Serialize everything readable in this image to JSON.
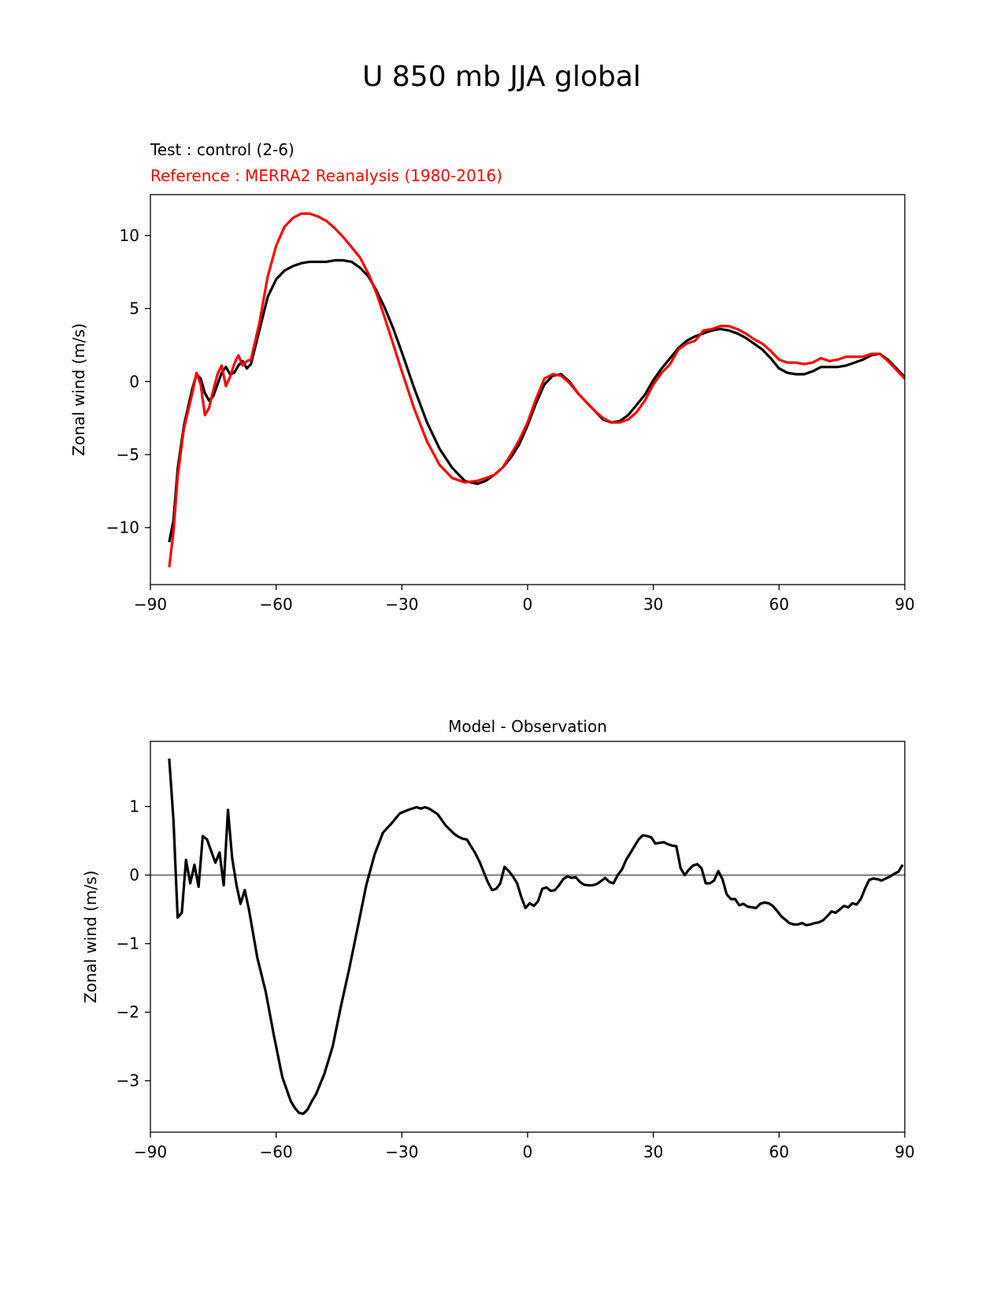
{
  "figure": {
    "title": "U 850 mb JJA global"
  },
  "chart_data": [
    {
      "type": "line",
      "title_left_test": "Test : control (2-6)",
      "title_left_ref": "Reference : MERRA2 Reanalysis (1980-2016)",
      "xlabel": "",
      "ylabel": "Zonal wind (m/s)",
      "xlim": [
        -90,
        90
      ],
      "ylim": [
        -13.9,
        12.8
      ],
      "xticks": [
        -90,
        -60,
        -30,
        0,
        30,
        60,
        90
      ],
      "xtick_labels": [
        "−90",
        "−60",
        "−30",
        "0",
        "30",
        "60",
        "90"
      ],
      "yticks": [
        -10,
        -5,
        0,
        5,
        10
      ],
      "ytick_labels": [
        "−10",
        "−5",
        "0",
        "5",
        "10"
      ],
      "series": [
        {
          "name": "Test : control (2-6)",
          "color": "#000000",
          "x": [
            -85.5,
            -84.5,
            -83.5,
            -82,
            -80,
            -79,
            -78,
            -77,
            -76,
            -75,
            -74,
            -73,
            -72,
            -71,
            -70,
            -69,
            -68,
            -67,
            -66,
            -64,
            -62,
            -60,
            -58,
            -56,
            -54,
            -52,
            -50,
            -48,
            -46,
            -44,
            -42,
            -40,
            -38,
            -36,
            -34,
            -32,
            -30,
            -27,
            -24,
            -21,
            -18,
            -15,
            -12,
            -10,
            -8,
            -6,
            -4,
            -2,
            0,
            2,
            4,
            6,
            8,
            10,
            12,
            14,
            16,
            18,
            20,
            22,
            24,
            26,
            28,
            30,
            32,
            34,
            36,
            38,
            40,
            42,
            44,
            46,
            48,
            50,
            52,
            54,
            56,
            58,
            60,
            62,
            64,
            66,
            68,
            70,
            72,
            74,
            76,
            78,
            80,
            82,
            84,
            86,
            88,
            90
          ],
          "y": [
            -11.0,
            -9.5,
            -6.0,
            -3.0,
            -0.5,
            0.5,
            0.2,
            -0.8,
            -1.3,
            -1.0,
            -0.2,
            0.6,
            1.0,
            0.5,
            0.6,
            1.1,
            1.4,
            0.9,
            1.2,
            3.5,
            5.8,
            7.0,
            7.6,
            7.9,
            8.1,
            8.2,
            8.2,
            8.2,
            8.3,
            8.3,
            8.2,
            7.8,
            7.2,
            6.2,
            5.0,
            3.6,
            2.0,
            -0.5,
            -2.8,
            -4.6,
            -5.9,
            -6.8,
            -7.0,
            -6.8,
            -6.4,
            -5.9,
            -5.2,
            -4.3,
            -3.0,
            -1.5,
            -0.2,
            0.4,
            0.5,
            0.0,
            -0.8,
            -1.4,
            -2.0,
            -2.6,
            -2.8,
            -2.7,
            -2.3,
            -1.6,
            -0.9,
            0.1,
            0.9,
            1.6,
            2.3,
            2.8,
            3.1,
            3.3,
            3.5,
            3.6,
            3.5,
            3.3,
            3.0,
            2.6,
            2.2,
            1.6,
            0.9,
            0.6,
            0.5,
            0.5,
            0.7,
            1.0,
            1.0,
            1.0,
            1.1,
            1.3,
            1.5,
            1.8,
            1.9,
            1.5,
            0.9,
            0.3
          ]
        },
        {
          "name": "Reference : MERRA2 Reanalysis (1980-2016)",
          "color": "#ff0000",
          "x": [
            -85.5,
            -84.5,
            -83.5,
            -82,
            -80,
            -79,
            -78,
            -77,
            -76,
            -75,
            -74,
            -73,
            -72,
            -71,
            -70,
            -69,
            -68,
            -67,
            -66,
            -64,
            -62,
            -60,
            -58,
            -56,
            -54,
            -52,
            -50,
            -48,
            -46,
            -44,
            -42,
            -40,
            -38,
            -36,
            -34,
            -32,
            -30,
            -27,
            -24,
            -21,
            -18,
            -15,
            -12,
            -10,
            -8,
            -6,
            -4,
            -2,
            0,
            2,
            4,
            6,
            8,
            10,
            12,
            14,
            16,
            18,
            20,
            22,
            24,
            26,
            28,
            30,
            32,
            34,
            36,
            38,
            40,
            42,
            44,
            46,
            48,
            50,
            52,
            54,
            56,
            58,
            60,
            62,
            64,
            66,
            68,
            70,
            72,
            74,
            76,
            78,
            80,
            82,
            84,
            86,
            88,
            90
          ],
          "y": [
            -12.7,
            -10.3,
            -6.5,
            -3.2,
            -0.8,
            0.6,
            -0.2,
            -2.3,
            -1.8,
            -0.6,
            0.5,
            1.1,
            -0.3,
            0.3,
            1.2,
            1.8,
            1.1,
            1.4,
            1.5,
            4.0,
            7.2,
            9.3,
            10.6,
            11.2,
            11.5,
            11.5,
            11.3,
            11.0,
            10.5,
            9.9,
            9.2,
            8.5,
            7.4,
            6.0,
            4.3,
            2.5,
            0.7,
            -1.9,
            -4.1,
            -5.7,
            -6.6,
            -6.9,
            -6.8,
            -6.6,
            -6.4,
            -5.9,
            -5.0,
            -4.0,
            -2.8,
            -1.2,
            0.2,
            0.5,
            0.4,
            -0.1,
            -0.8,
            -1.4,
            -2.0,
            -2.5,
            -2.8,
            -2.8,
            -2.6,
            -2.1,
            -1.3,
            -0.2,
            0.6,
            1.2,
            2.2,
            2.6,
            2.8,
            3.5,
            3.6,
            3.8,
            3.8,
            3.6,
            3.3,
            2.9,
            2.6,
            2.1,
            1.5,
            1.3,
            1.3,
            1.2,
            1.3,
            1.6,
            1.4,
            1.5,
            1.7,
            1.7,
            1.7,
            1.9,
            1.9,
            1.4,
            0.8,
            0.2
          ]
        }
      ]
    },
    {
      "type": "line",
      "title": "Model - Observation",
      "xlabel": "",
      "ylabel": "Zonal wind (m/s)",
      "xlim": [
        -90,
        90
      ],
      "ylim": [
        -3.75,
        1.95
      ],
      "xticks": [
        -90,
        -60,
        -30,
        0,
        30,
        60,
        90
      ],
      "xtick_labels": [
        "−90",
        "−60",
        "−30",
        "0",
        "30",
        "60",
        "90"
      ],
      "yticks": [
        -3,
        -2,
        -1,
        0,
        1
      ],
      "ytick_labels": [
        "−3",
        "−2",
        "−1",
        "0",
        "1"
      ],
      "zero_line_color": "#808080",
      "series": [
        {
          "name": "Model - Observation",
          "color": "#000000",
          "x": [
            -85.5,
            -84.5,
            -83.5,
            -82.5,
            -81.5,
            -80.5,
            -79.5,
            -78.5,
            -77.5,
            -76.5,
            -75.5,
            -74.5,
            -73.5,
            -72.5,
            -71.5,
            -70.5,
            -69.5,
            -68.5,
            -67.5,
            -66.5,
            -64.5,
            -62.5,
            -60.5,
            -58.5,
            -56.5,
            -55.5,
            -54.5,
            -53.5,
            -52.5,
            -51.5,
            -50.5,
            -48.5,
            -46.5,
            -44.5,
            -42.5,
            -40.5,
            -38.5,
            -36.5,
            -34.5,
            -32.5,
            -30.5,
            -28.5,
            -26.5,
            -25.5,
            -24.5,
            -23.5,
            -21.5,
            -19.5,
            -17.5,
            -16.5,
            -15.5,
            -14.5,
            -12.5,
            -11.5,
            -10.5,
            -9.5,
            -8.5,
            -7.5,
            -6.5,
            -5.5,
            -4.5,
            -3.5,
            -2.5,
            -1.5,
            -0.5,
            0.5,
            1.5,
            2.5,
            3.5,
            4.5,
            5.5,
            6.5,
            7.5,
            8.5,
            9.5,
            10.5,
            11.5,
            12.5,
            13.5,
            14.5,
            15.5,
            16.5,
            17.5,
            18.5,
            19.5,
            20.5,
            21.5,
            22.5,
            23.5,
            24.5,
            25.5,
            26.5,
            27.5,
            28.5,
            29.5,
            30.5,
            31.5,
            32.5,
            33.5,
            34.5,
            35.5,
            36.5,
            37.5,
            38.5,
            39.5,
            40.5,
            41.5,
            42.5,
            43.5,
            44.5,
            45.5,
            46.5,
            47.5,
            48.5,
            49.5,
            50.5,
            51.5,
            52.5,
            53.5,
            54.5,
            55.5,
            56.5,
            57.5,
            58.5,
            59.5,
            60.5,
            61.5,
            62.5,
            63.5,
            64.5,
            65.5,
            66.5,
            67.5,
            68.5,
            69.5,
            70.5,
            71.5,
            72.5,
            73.5,
            74.5,
            75.5,
            76.5,
            77.5,
            78.5,
            79.5,
            80.5,
            81.5,
            82.5,
            83.5,
            84.5,
            85.5,
            86.5,
            87.5,
            88.5,
            89.5
          ],
          "y": [
            1.7,
            0.8,
            -0.62,
            -0.55,
            0.22,
            -0.12,
            0.15,
            -0.17,
            0.57,
            0.52,
            0.35,
            0.18,
            0.33,
            -0.15,
            0.95,
            0.25,
            -0.13,
            -0.42,
            -0.22,
            -0.5,
            -1.2,
            -1.7,
            -2.35,
            -2.95,
            -3.3,
            -3.4,
            -3.47,
            -3.48,
            -3.42,
            -3.3,
            -3.2,
            -2.9,
            -2.5,
            -1.9,
            -1.35,
            -0.75,
            -0.15,
            0.3,
            0.62,
            0.75,
            0.9,
            0.95,
            0.99,
            0.97,
            0.99,
            0.97,
            0.89,
            0.72,
            0.6,
            0.56,
            0.53,
            0.52,
            0.32,
            0.2,
            0.05,
            -0.1,
            -0.22,
            -0.2,
            -0.12,
            0.12,
            0.06,
            -0.02,
            -0.12,
            -0.32,
            -0.48,
            -0.41,
            -0.45,
            -0.38,
            -0.2,
            -0.18,
            -0.23,
            -0.22,
            -0.15,
            -0.06,
            -0.02,
            -0.04,
            -0.03,
            -0.1,
            -0.14,
            -0.15,
            -0.15,
            -0.13,
            -0.09,
            -0.04,
            -0.1,
            -0.12,
            0.0,
            0.08,
            0.22,
            0.32,
            0.42,
            0.52,
            0.58,
            0.57,
            0.55,
            0.46,
            0.47,
            0.48,
            0.45,
            0.43,
            0.42,
            0.1,
            0.0,
            0.08,
            0.14,
            0.16,
            0.1,
            -0.12,
            -0.12,
            -0.08,
            0.06,
            -0.06,
            -0.28,
            -0.35,
            -0.35,
            -0.44,
            -0.42,
            -0.46,
            -0.47,
            -0.48,
            -0.42,
            -0.4,
            -0.41,
            -0.45,
            -0.52,
            -0.6,
            -0.65,
            -0.7,
            -0.72,
            -0.72,
            -0.7,
            -0.73,
            -0.72,
            -0.7,
            -0.69,
            -0.66,
            -0.6,
            -0.53,
            -0.55,
            -0.5,
            -0.45,
            -0.47,
            -0.41,
            -0.43,
            -0.35,
            -0.2,
            -0.07,
            -0.05,
            -0.06,
            -0.08,
            -0.05,
            -0.02,
            0.02,
            0.05,
            0.15
          ]
        }
      ]
    }
  ]
}
